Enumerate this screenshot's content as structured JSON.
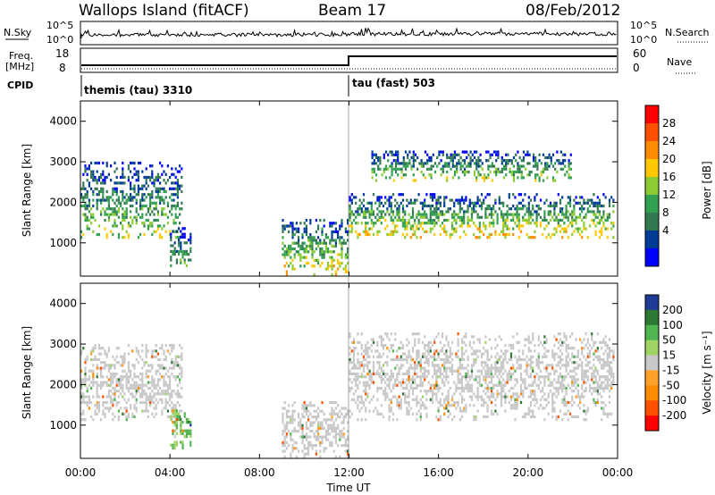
{
  "header": {
    "station": "Wallops Island (fitACF)",
    "beam": "Beam 17",
    "date": "08/Feb/2012"
  },
  "top_panel": {
    "left_label": "N.Sky",
    "right_label": "N.Search",
    "ticks": [
      "10^5",
      "10^0"
    ]
  },
  "freq_panel": {
    "left_label_1": "Freq.",
    "left_label_2": "[MHz]",
    "left_ticks": [
      "18",
      "8"
    ],
    "right_label": "Nave",
    "right_ticks": [
      "60",
      "0"
    ]
  },
  "cpid_panel": {
    "label": "CPID",
    "modes": [
      {
        "name": "themis (tau) 3310",
        "start_hour": 0
      },
      {
        "name": "tau (fast) 503",
        "start_hour": 12
      }
    ]
  },
  "colorbars": {
    "power": {
      "label": "Power [dB]",
      "ticks": [
        "28",
        "24",
        "20",
        "16",
        "12",
        "8",
        "4"
      ],
      "colors": [
        "#ff0000",
        "#ff5000",
        "#ff8c00",
        "#ffc800",
        "#8ccc32",
        "#32a050",
        "#327850",
        "#003c96",
        "#0000ff"
      ]
    },
    "velocity": {
      "label": "Velocity [m s⁻¹]",
      "ticks": [
        "200",
        "100",
        "50",
        "15",
        "-15",
        "-50",
        "-100",
        "-200"
      ],
      "colors": [
        "#1e3c96",
        "#2d7832",
        "#50b450",
        "#a0d264",
        "#c8c8c8",
        "#ffa028",
        "#ff8c00",
        "#ff5000",
        "#ff0000"
      ]
    }
  },
  "x_axis": {
    "label": "Time UT",
    "ticks": [
      "00:00",
      "04:00",
      "08:00",
      "12:00",
      "16:00",
      "20:00",
      "00:00"
    ]
  },
  "y_axis": {
    "label": "Slant Range [km]",
    "ticks": [
      "1000",
      "2000",
      "3000",
      "4000"
    ]
  },
  "chart_data": [
    {
      "type": "heatmap",
      "title": "Power",
      "xlabel": "Time UT",
      "ylabel": "Slant Range [km]",
      "xlim": [
        0,
        24
      ],
      "ylim": [
        180,
        4500
      ],
      "color_scale": {
        "label": "Power [dB]",
        "ticks": [
          4,
          8,
          12,
          16,
          20,
          24,
          28
        ]
      },
      "echo_regions": [
        {
          "t": [
            0.0,
            4.6
          ],
          "r": [
            1100,
            3000
          ],
          "peak_db": 24
        },
        {
          "t": [
            4.0,
            5.0
          ],
          "r": [
            400,
            1400
          ],
          "peak_db": 20
        },
        {
          "t": [
            9.0,
            12.0
          ],
          "r": [
            180,
            1600
          ],
          "peak_db": 28
        },
        {
          "t": [
            12.0,
            23.9
          ],
          "r": [
            1100,
            2200
          ],
          "peak_db": 28
        },
        {
          "t": [
            13.0,
            22.0
          ],
          "r": [
            2500,
            3300
          ],
          "peak_db": 24
        }
      ]
    },
    {
      "type": "heatmap",
      "title": "Velocity",
      "xlabel": "Time UT",
      "ylabel": "Slant Range [km]",
      "xlim": [
        0,
        24
      ],
      "ylim": [
        180,
        4500
      ],
      "color_scale": {
        "label": "Velocity [m s⁻¹]",
        "ticks": [
          -200,
          -100,
          -50,
          -15,
          15,
          50,
          100,
          200
        ]
      },
      "echo_regions": [
        {
          "t": [
            0.0,
            4.6
          ],
          "r": [
            1100,
            3000
          ],
          "typical_v": 0
        },
        {
          "t": [
            4.0,
            5.0
          ],
          "r": [
            400,
            1400
          ],
          "typical_v": 50
        },
        {
          "t": [
            9.0,
            12.0
          ],
          "r": [
            180,
            1600
          ],
          "typical_v": 0
        },
        {
          "t": [
            12.0,
            23.9
          ],
          "r": [
            1100,
            3300
          ],
          "typical_v": 0
        }
      ]
    }
  ]
}
